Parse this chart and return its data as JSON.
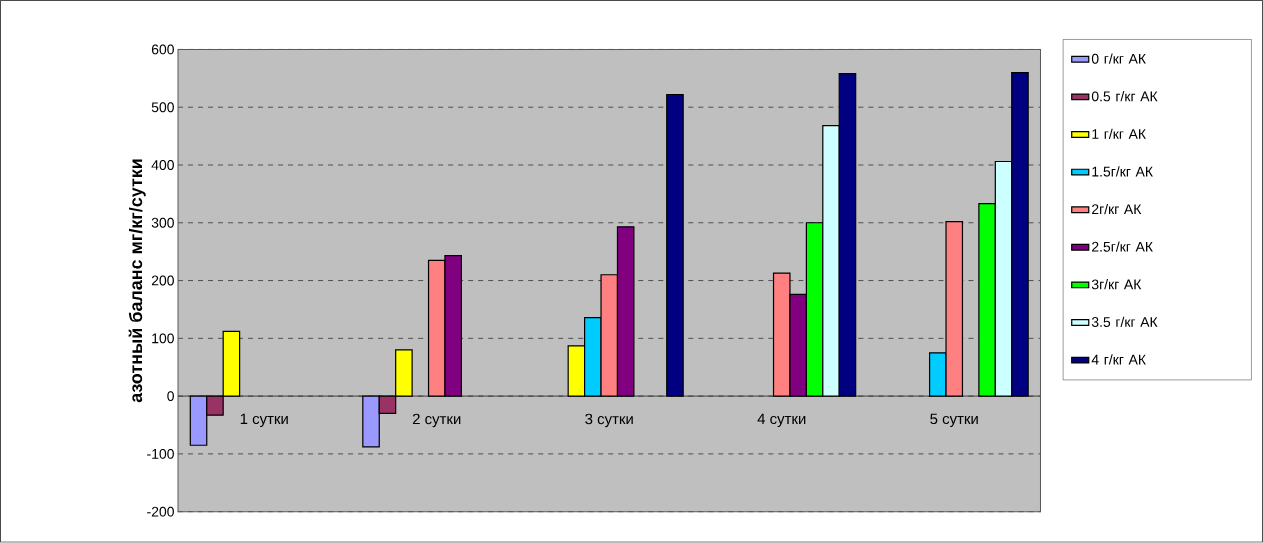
{
  "chart_data": {
    "type": "bar",
    "ylabel": "азотный баланс мг/кг/сутки",
    "categories": [
      "1 сутки",
      "2 сутки",
      "3 сутки",
      "4 сутки",
      "5 сутки"
    ],
    "series": [
      {
        "name": "0 г/кг АК",
        "color": "#9999ff",
        "values": [
          -85,
          -88,
          null,
          null,
          null
        ]
      },
      {
        "name": "0.5 г/кг АК",
        "color": "#993366",
        "values": [
          -33,
          -30,
          null,
          null,
          null
        ]
      },
      {
        "name": "1 г/кг АК",
        "color": "#ffff00",
        "values": [
          112,
          80,
          87,
          null,
          null
        ]
      },
      {
        "name": "1.5г/кг АК",
        "color": "#00ccff",
        "values": [
          null,
          null,
          136,
          null,
          75
        ]
      },
      {
        "name": "2г/кг АК",
        "color": "#ff8080",
        "values": [
          null,
          235,
          210,
          213,
          302
        ]
      },
      {
        "name": "2.5г/кг АК",
        "color": "#800080",
        "values": [
          null,
          243,
          293,
          176,
          null
        ]
      },
      {
        "name": "3г/кг АК",
        "color": "#00ff00",
        "values": [
          null,
          null,
          null,
          300,
          333
        ]
      },
      {
        "name": "3.5 г/кг АК",
        "color": "#ccffff",
        "values": [
          null,
          null,
          null,
          468,
          406
        ]
      },
      {
        "name": "4 г/кг АК",
        "color": "#000080",
        "values": [
          null,
          null,
          522,
          558,
          560
        ]
      }
    ],
    "ylim": [
      -200,
      600
    ],
    "yticks": [
      -200,
      -100,
      0,
      100,
      200,
      300,
      400,
      500,
      600
    ],
    "grid": "y",
    "legend": "right"
  }
}
